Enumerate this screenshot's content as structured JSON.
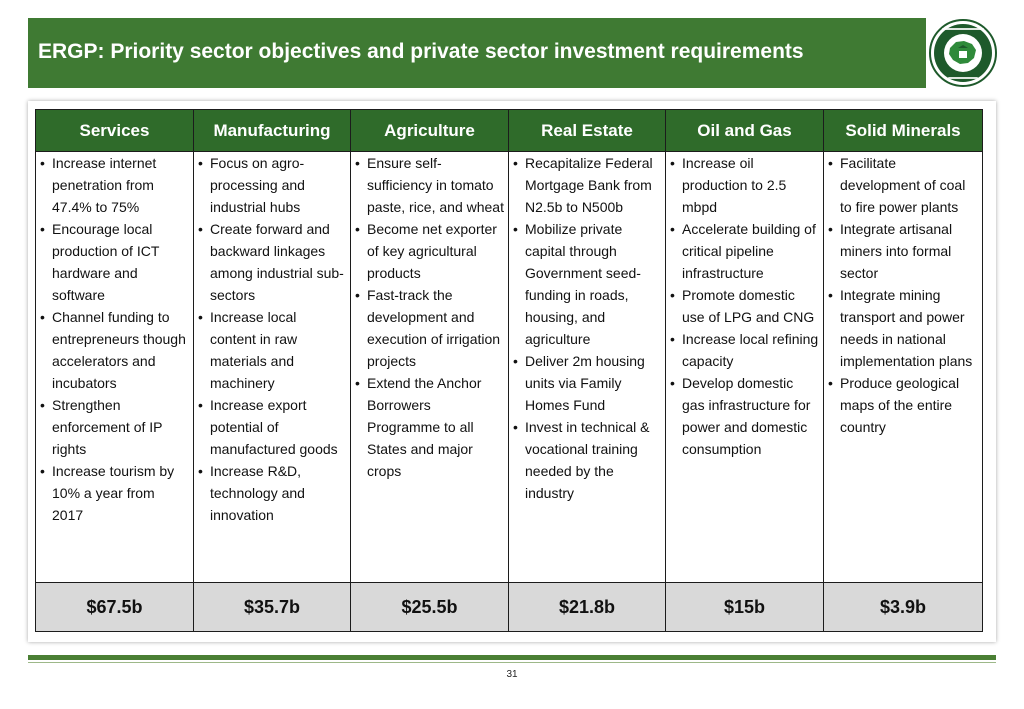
{
  "header": {
    "title": "ERGP: Priority sector objectives and private sector investment requirements"
  },
  "logo": {
    "icon": "commission-seal-icon",
    "colors": {
      "ring": "#1e5a2b",
      "map": "#2f8a3a",
      "inner": "#ffffff"
    }
  },
  "sectors": [
    {
      "name": "Services",
      "items": [
        "Increase internet penetration from 47.4% to 75%",
        "Encourage local production of ICT hardware and software",
        "Channel funding to entrepreneurs though accelerators and incubators",
        "Strengthen enforcement of IP rights",
        "Increase tourism by 10% a year from 2017"
      ],
      "total": "$67.5b"
    },
    {
      "name": "Manufacturing",
      "items": [
        "Focus on agro-processing and industrial hubs",
        "Create forward and backward linkages among industrial sub-sectors",
        "Increase local content in raw materials and machinery",
        "Increase export potential of manufactured goods",
        "Increase R&D, technology and innovation"
      ],
      "total": "$35.7b"
    },
    {
      "name": "Agriculture",
      "items": [
        "Ensure self-sufficiency in tomato paste, rice, and wheat",
        "Become net exporter of key agricultural products",
        "Fast-track the development and execution of irrigation projects",
        "Extend the Anchor Borrowers Programme to all States and major crops"
      ],
      "total": "$25.5b"
    },
    {
      "name": "Real Estate",
      "items": [
        "Recapitalize Federal Mortgage Bank from N2.5b to N500b",
        "Mobilize private capital through Government seed-funding in roads, housing, and agriculture",
        "Deliver 2m housing units via Family Homes Fund",
        "Invest in technical & vocational training needed by the industry"
      ],
      "total": "$21.8b"
    },
    {
      "name": "Oil and Gas",
      "items": [
        "Increase oil production to 2.5 mbpd",
        "Accelerate building of critical pipeline infrastructure",
        "Promote domestic use of LPG and CNG",
        "Increase local refining capacity",
        "Develop domestic gas infrastructure for power and domestic consumption"
      ],
      "total": "$15b"
    },
    {
      "name": "Solid Minerals",
      "items": [
        "Facilitate development of coal to fire power plants",
        "Integrate artisanal miners into formal sector",
        "Integrate mining transport and power needs in national implementation plans",
        "Produce geological maps of the entire country"
      ],
      "total": "$3.9b"
    }
  ],
  "footer": {
    "page_number": "31"
  },
  "colors": {
    "header_bg": "#3f7a33",
    "table_header_bg": "#2f6b2a",
    "total_row_bg": "#d9d9d9"
  }
}
